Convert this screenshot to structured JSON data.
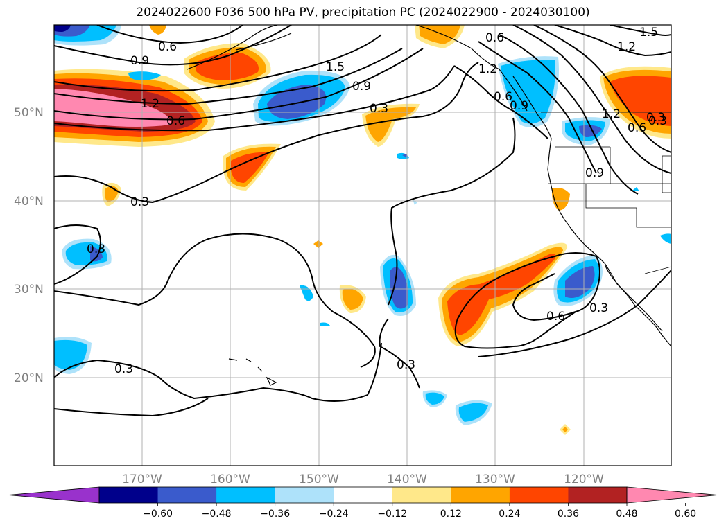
{
  "title": "2024022600 F036 500 hPa PV, precipitation PC (2024022900 - 2024030100)",
  "lat_labels": [
    "50°N",
    "40°N",
    "30°N",
    "20°N"
  ],
  "lon_labels": [
    "170°W",
    "160°W",
    "150°W",
    "140°W",
    "130°W",
    "120°W"
  ],
  "colorbar": {
    "labels": [
      "−0.60",
      "−0.48",
      "−0.36",
      "−0.24",
      "−0.12",
      "0.12",
      "0.24",
      "0.36",
      "0.48",
      "0.60"
    ],
    "colors": [
      "#9932cc",
      "#00008b",
      "#3a5bcc",
      "#00bfff",
      "#aee2fa",
      "#ffffff",
      "#ffe88a",
      "#ffa500",
      "#ff4500",
      "#b22222",
      "#ff88b0"
    ]
  },
  "contour_labels": [
    "0.6",
    "0.9",
    "1.5",
    "1.2",
    "1.5",
    "1.2",
    "0.9",
    "0.6",
    "1.2",
    "0.6",
    "0.6",
    "0.3",
    "0.3",
    "1.2",
    "0.9",
    "0.6",
    "0.3",
    "0.9",
    "0.3",
    "0.3",
    "0.3",
    "0.6",
    "0.3",
    "0.3"
  ],
  "shading_colors": {
    "light_blue": "#aee2fa",
    "cyan": "#00bfff",
    "blue": "#3a5bcc",
    "navy": "#00008b",
    "yellow": "#ffe88a",
    "orange": "#ffa500",
    "red_orange": "#ff4500",
    "dark_red": "#b22222",
    "pink": "#ff88b0"
  }
}
